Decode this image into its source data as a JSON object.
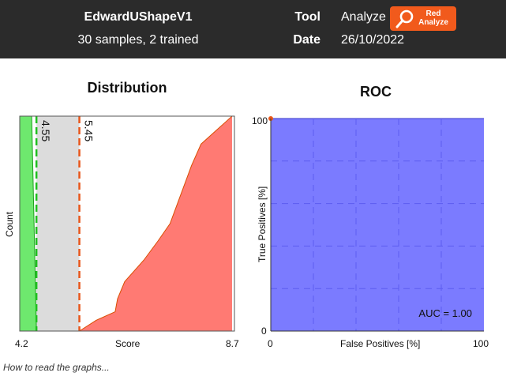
{
  "header": {
    "model_name": "EdwardUShapeV1",
    "model_summary": "30 samples, 2 trained",
    "tool_label": "Tool",
    "tool_value": "Analyze",
    "tool_button_label": "Red Analyze",
    "tool_button_icon": "magnifier-icon",
    "date_label": "Date",
    "date_value": "26/10/2022"
  },
  "distribution": {
    "title": "Distribution",
    "ylabel": "Count",
    "xlabel": "Score",
    "x_min_label": "4.2",
    "x_max_label": "8.7"
  },
  "roc": {
    "title": "ROC",
    "ylabel": "True Positives [%]",
    "xlabel": "False Positives [%]",
    "y_max_label": "100",
    "y_min_label": "0",
    "x_min_label": "0",
    "x_max_label": "100",
    "auc_text": "AUC = 1.00"
  },
  "help_link": "How to read the graphs...",
  "colors": {
    "header_bg": "#2b2b2b",
    "button_orange": "#f15a1c",
    "green": "#6ee86e",
    "green_line": "#1e9e1e",
    "red_fill": "#ff7a73",
    "red_line": "#d94d00",
    "gray_band": "#dcdcdc",
    "roc_fill": "#7b7bff",
    "roc_grid": "#5c5cf0"
  },
  "chart_data": [
    {
      "type": "area",
      "title": "Distribution",
      "xlabel": "Score",
      "ylabel": "Count",
      "xlim": [
        4.2,
        8.7
      ],
      "series": [
        {
          "name": "",
          "color": "green",
          "x": [
            4.2,
            4.45,
            4.55
          ],
          "y": [
            1.0,
            1.0,
            0.0
          ]
        },
        {
          "name": "",
          "color": "red",
          "x": [
            5.45,
            5.8,
            6.2,
            6.25,
            6.4,
            6.8,
            7.1,
            7.35,
            7.5,
            7.65,
            7.8,
            8.0,
            8.3,
            8.55,
            8.65
          ],
          "y": [
            0.0,
            0.05,
            0.09,
            0.15,
            0.23,
            0.33,
            0.42,
            0.5,
            0.59,
            0.68,
            0.77,
            0.87,
            0.93,
            0.98,
            1.0
          ]
        }
      ],
      "thresholds": [
        {
          "value": 4.55,
          "label": "4.55",
          "color": "green"
        },
        {
          "value": 5.45,
          "label": "5.45",
          "color": "red"
        }
      ]
    },
    {
      "type": "area",
      "title": "ROC",
      "xlabel": "False Positives [%]",
      "ylabel": "True Positives [%]",
      "xlim": [
        0,
        100
      ],
      "ylim": [
        0,
        100
      ],
      "x": [
        0,
        0,
        100
      ],
      "y": [
        0,
        100,
        100
      ],
      "annotation": "AUC = 1.00",
      "grid": true
    }
  ]
}
